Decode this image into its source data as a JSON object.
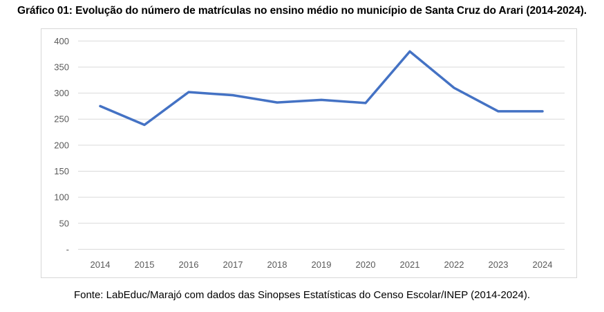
{
  "page": {
    "title": "Gráfico 01: Evolução do número de matrículas no ensino médio no município de Santa Cruz do Arari (2014-2024).",
    "source": "Fonte: LabEduc/Marajó com dados das Sinopses Estatísticas do Censo Escolar/INEP (2014-2024)."
  },
  "chart_data": {
    "type": "line",
    "title": "Gráfico 01: Evolução do número de matrículas no ensino médio no município de Santa Cruz do Arari (2014-2024).",
    "categories": [
      "2014",
      "2015",
      "2016",
      "2017",
      "2018",
      "2019",
      "2020",
      "2021",
      "2022",
      "2023",
      "2024"
    ],
    "values": [
      275,
      239,
      302,
      296,
      282,
      287,
      281,
      380,
      310,
      265,
      265
    ],
    "xlabel": "",
    "ylabel": "",
    "ylim": [
      0,
      400
    ],
    "y_ticks": [
      400,
      350,
      300,
      250,
      200,
      150,
      100,
      50,
      0
    ],
    "y_tick_labels": [
      "400",
      "350",
      "300",
      "250",
      "200",
      "150",
      "100",
      "50",
      "-"
    ],
    "grid": true,
    "legend": "none",
    "colors": {
      "line": "#4472C4",
      "gridline": "#D9D9D9",
      "axis_text": "#595959",
      "frame_border": "#D7D7D7",
      "title_text": "#000000"
    }
  }
}
